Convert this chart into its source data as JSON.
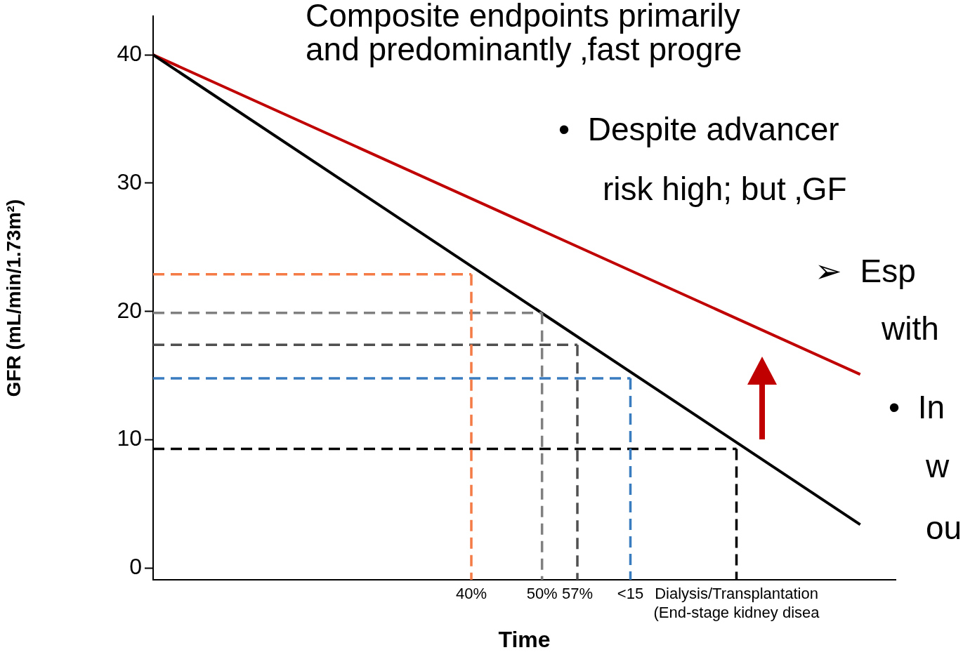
{
  "chart_data": {
    "type": "line",
    "xlabel": "Time",
    "ylabel": "GFR (mL/min/1.73m²)",
    "categories": [
      null,
      null,
      null,
      null,
      null,
      null,
      null,
      null,
      null,
      null,
      null,
      null,
      null,
      null,
      null,
      null,
      null,
      null,
      "40%",
      null,
      null,
      null,
      "50%",
      null,
      "57%",
      null,
      null,
      "<15",
      null,
      null,
      null,
      null,
      null,
      "Dialysis/Transplantation\n(End-stage kidney disea",
      null,
      null,
      null,
      null,
      null,
      null,
      null,
      null,
      null
    ],
    "ylim": [
      -0.9,
      43
    ],
    "yticks": [
      0,
      10,
      20,
      30,
      40
    ],
    "grid": false,
    "legend": false,
    "marker": "none",
    "series": [
      {
        "color": "#c00000",
        "values": [
          40,
          null,
          null,
          null,
          null,
          null,
          null,
          null,
          null,
          null,
          null,
          null,
          null,
          null,
          null,
          null,
          null,
          null,
          null,
          null,
          null,
          null,
          null,
          null,
          null,
          null,
          null,
          null,
          null,
          null,
          null,
          null,
          null,
          null,
          null,
          null,
          null,
          null,
          null,
          null,
          15.1,
          null,
          null
        ],
        "line_style": "solid"
      },
      {
        "color": "#000000",
        "values": [
          40,
          null,
          null,
          null,
          null,
          null,
          null,
          null,
          null,
          null,
          null,
          null,
          null,
          null,
          null,
          null,
          null,
          null,
          null,
          null,
          null,
          null,
          null,
          null,
          null,
          null,
          null,
          null,
          null,
          null,
          null,
          null,
          null,
          null,
          null,
          null,
          null,
          null,
          null,
          null,
          3.4,
          null,
          null
        ],
        "line_style": "solid"
      },
      {
        "color": "#f47b45",
        "values": [
          22.9,
          null,
          null,
          null,
          null,
          null,
          null,
          null,
          null,
          null,
          null,
          null,
          null,
          null,
          null,
          null,
          null,
          null,
          22.9,
          null,
          null,
          null,
          null,
          null,
          null,
          null,
          null,
          null,
          null,
          null,
          null,
          null,
          null,
          null,
          null,
          null,
          null,
          null,
          null,
          null,
          null,
          null,
          null
        ],
        "line_style": "dashed"
      },
      {
        "color": "#808080",
        "values": [
          19.9,
          null,
          null,
          null,
          null,
          null,
          null,
          null,
          null,
          null,
          null,
          null,
          null,
          null,
          null,
          null,
          null,
          null,
          null,
          null,
          null,
          null,
          19.9,
          null,
          null,
          null,
          null,
          null,
          null,
          null,
          null,
          null,
          null,
          null,
          null,
          null,
          null,
          null,
          null,
          null,
          null,
          null,
          null
        ],
        "line_style": "dashed"
      },
      {
        "color": "#505050",
        "values": [
          17.4,
          null,
          null,
          null,
          null,
          null,
          null,
          null,
          null,
          null,
          null,
          null,
          null,
          null,
          null,
          null,
          null,
          null,
          null,
          null,
          null,
          null,
          null,
          null,
          17.4,
          null,
          null,
          null,
          null,
          null,
          null,
          null,
          null,
          null,
          null,
          null,
          null,
          null,
          null,
          null,
          null,
          null,
          null
        ],
        "line_style": "dashed"
      },
      {
        "color": "#3a7cc0",
        "values": [
          14.8,
          null,
          null,
          null,
          null,
          null,
          null,
          null,
          null,
          null,
          null,
          null,
          null,
          null,
          null,
          null,
          null,
          null,
          null,
          null,
          null,
          null,
          null,
          null,
          null,
          null,
          null,
          14.8,
          null,
          null,
          null,
          null,
          null,
          null,
          null,
          null,
          null,
          null,
          null,
          null,
          null,
          null,
          null
        ],
        "line_style": "dashed"
      },
      {
        "color": "#000000",
        "values": [
          9.3,
          null,
          null,
          null,
          null,
          null,
          null,
          null,
          null,
          null,
          null,
          null,
          null,
          null,
          null,
          null,
          null,
          null,
          null,
          null,
          null,
          null,
          null,
          null,
          null,
          null,
          null,
          null,
          null,
          null,
          null,
          null,
          null,
          9.3,
          null,
          null,
          null,
          null,
          null,
          null,
          null,
          null,
          null
        ],
        "line_style": "dashed"
      },
      {
        "color": "#f47b45",
        "x": [
          "40%",
          "40%"
        ],
        "values": [
          22.9,
          -0.9
        ],
        "line_style": "dashed"
      },
      {
        "color": "#808080",
        "x": [
          "50%",
          "50%"
        ],
        "values": [
          19.9,
          -0.9
        ],
        "line_style": "dashed"
      },
      {
        "color": "#505050",
        "x": [
          "57%",
          "57%"
        ],
        "values": [
          17.4,
          -0.9
        ],
        "line_style": "dashed"
      },
      {
        "color": "#3a7cc0",
        "x": [
          "<15",
          "<15"
        ],
        "values": [
          14.8,
          -0.9
        ],
        "line_style": "dashed"
      },
      {
        "color": "#000000",
        "x": [
          "Dialysis/Transplantation\n(End-stage kidney disea",
          "Dialysis/Transplantation\n(End-stage kidney disea"
        ],
        "values": [
          9.3,
          -0.9
        ],
        "line_style": "dashed"
      }
    ],
    "annotations": [
      "Composite endpoints primarily",
      "and predominantly ‚fast progre",
      "•  Despite advancer",
      "risk high; but ‚GF",
      "➢  Esp",
      "with",
      "•  In",
      "w",
      "ou"
    ]
  }
}
